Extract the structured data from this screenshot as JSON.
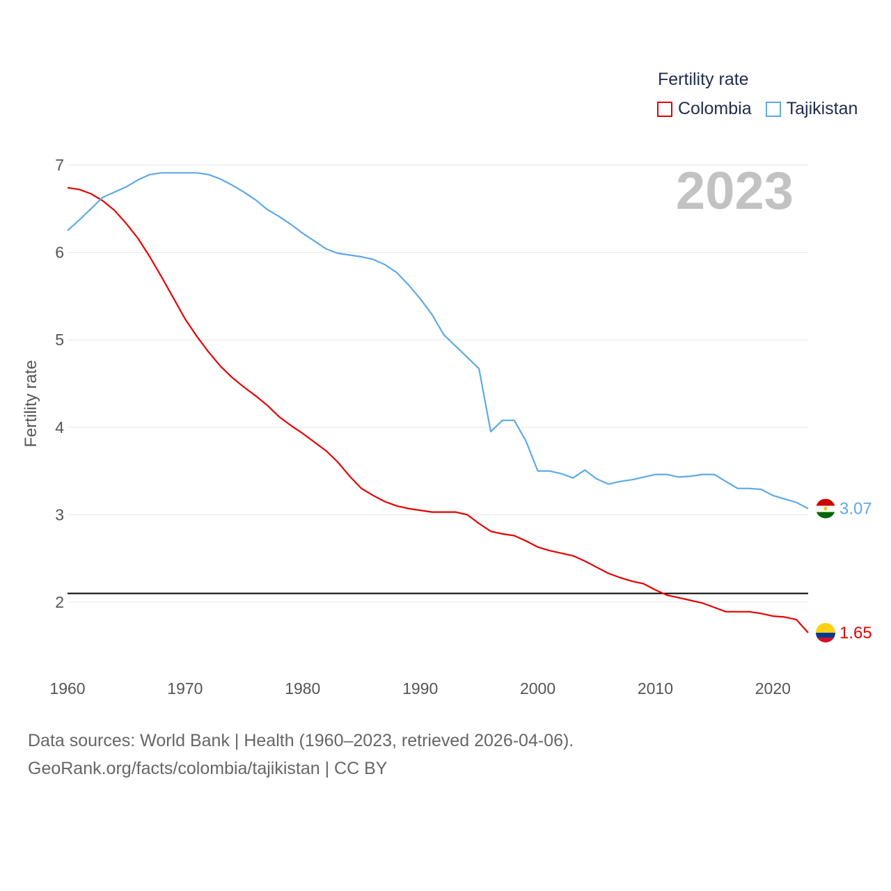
{
  "legend": {
    "title": "Fertility rate",
    "items": [
      {
        "name": "Colombia",
        "color": "#e60000"
      },
      {
        "name": "Tajikistan",
        "color": "#5ea9e6"
      }
    ]
  },
  "footer": {
    "line1": "Data sources: World Bank | Health (1960–2023, retrieved 2026-04-06).",
    "line2": "GeoRank.org/facts/colombia/tajikistan | CC BY"
  },
  "chart_data": {
    "type": "line",
    "title": "Fertility rate",
    "year_label": "2023",
    "ylabel": "Fertility rate",
    "xlabel": "",
    "xlim": [
      1960,
      2023
    ],
    "ylim": [
      1.5,
      7.0
    ],
    "xticks": [
      1960,
      1970,
      1980,
      1990,
      2000,
      2010,
      2020
    ],
    "yticks": [
      2,
      3,
      4,
      5,
      6,
      7
    ],
    "reference_line": {
      "y": 2.1,
      "color": "#000000"
    },
    "x": [
      1960,
      1961,
      1962,
      1963,
      1964,
      1965,
      1966,
      1967,
      1968,
      1969,
      1970,
      1971,
      1972,
      1973,
      1974,
      1975,
      1976,
      1977,
      1978,
      1979,
      1980,
      1981,
      1982,
      1983,
      1984,
      1985,
      1986,
      1987,
      1988,
      1989,
      1990,
      1991,
      1992,
      1993,
      1994,
      1995,
      1996,
      1997,
      1998,
      1999,
      2000,
      2001,
      2002,
      2003,
      2004,
      2005,
      2006,
      2007,
      2008,
      2009,
      2010,
      2011,
      2012,
      2013,
      2014,
      2015,
      2016,
      2017,
      2018,
      2019,
      2020,
      2021,
      2022,
      2023
    ],
    "series": [
      {
        "name": "Colombia",
        "color": "#e60000",
        "end_label": "1.65",
        "values": [
          6.74,
          6.72,
          6.67,
          6.59,
          6.48,
          6.33,
          6.16,
          5.95,
          5.72,
          5.48,
          5.24,
          5.04,
          4.86,
          4.7,
          4.57,
          4.46,
          4.36,
          4.25,
          4.12,
          4.02,
          3.93,
          3.83,
          3.73,
          3.6,
          3.44,
          3.3,
          3.22,
          3.15,
          3.1,
          3.07,
          3.05,
          3.03,
          3.03,
          3.03,
          3.0,
          2.9,
          2.81,
          2.78,
          2.76,
          2.7,
          2.63,
          2.59,
          2.56,
          2.53,
          2.47,
          2.4,
          2.33,
          2.28,
          2.24,
          2.21,
          2.14,
          2.08,
          2.05,
          2.02,
          1.99,
          1.94,
          1.89,
          1.89,
          1.89,
          1.87,
          1.84,
          1.83,
          1.8,
          1.65
        ]
      },
      {
        "name": "Tajikistan",
        "color": "#5ea9e6",
        "end_label": "3.07",
        "values": [
          6.25,
          6.37,
          6.5,
          6.63,
          6.69,
          6.75,
          6.83,
          6.89,
          6.91,
          6.91,
          6.91,
          6.91,
          6.89,
          6.84,
          6.77,
          6.69,
          6.6,
          6.49,
          6.41,
          6.32,
          6.22,
          6.13,
          6.04,
          5.99,
          5.97,
          5.95,
          5.92,
          5.86,
          5.77,
          5.63,
          5.47,
          5.29,
          5.06,
          4.93,
          4.8,
          4.67,
          3.95,
          4.08,
          4.08,
          3.84,
          3.5,
          3.5,
          3.47,
          3.42,
          3.51,
          3.41,
          3.35,
          3.38,
          3.4,
          3.43,
          3.46,
          3.46,
          3.43,
          3.44,
          3.46,
          3.46,
          3.38,
          3.3,
          3.3,
          3.29,
          3.22,
          3.18,
          3.14,
          3.07
        ]
      }
    ]
  }
}
